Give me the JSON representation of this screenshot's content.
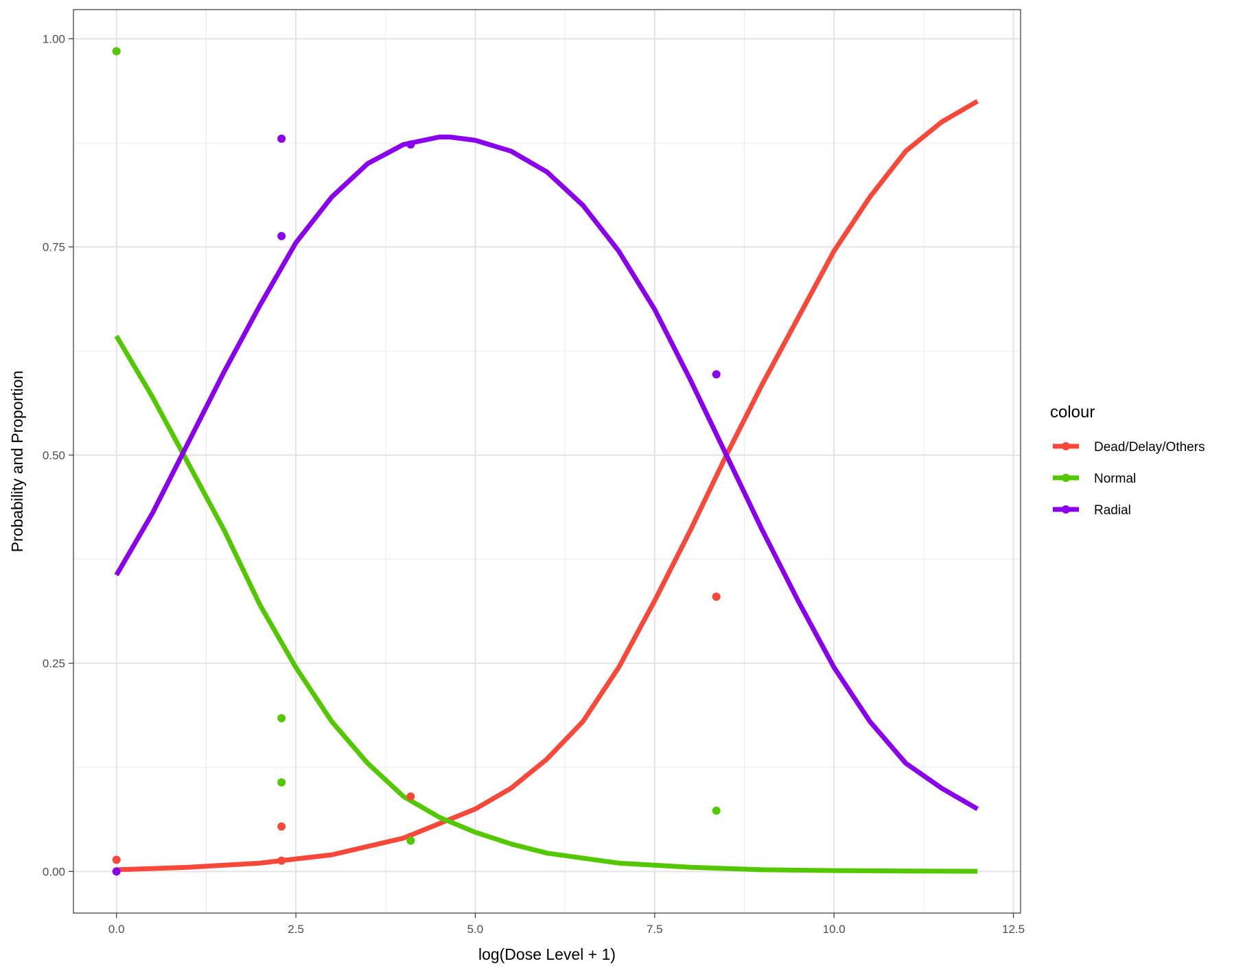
{
  "chart_data": {
    "type": "line",
    "title": "",
    "xlabel": "log(Dose Level + 1)",
    "ylabel": "Probability and Proportion",
    "xlim": [
      -0.6,
      12.6
    ],
    "ylim": [
      -0.05,
      1.035
    ],
    "x_ticks": [
      0.0,
      2.5,
      5.0,
      7.5,
      10.0,
      12.5
    ],
    "x_tick_labels": [
      "0.0",
      "2.5",
      "5.0",
      "7.5",
      "10.0",
      "12.5"
    ],
    "y_ticks": [
      0.0,
      0.25,
      0.5,
      0.75,
      1.0
    ],
    "y_tick_labels": [
      "0.00",
      "0.25",
      "0.50",
      "0.75",
      "1.00"
    ],
    "grid": true,
    "legend": {
      "title": "colour",
      "position": "right"
    },
    "series": [
      {
        "name": "Dead/Delay/Others",
        "color": "#F8483A",
        "curve_x": [
          0,
          1,
          2,
          3,
          4,
          5,
          5.5,
          6,
          6.5,
          7,
          7.5,
          8,
          8.5,
          9,
          9.5,
          10,
          10.5,
          11,
          11.5,
          12
        ],
        "curve_y": [
          0.002,
          0.005,
          0.01,
          0.02,
          0.04,
          0.075,
          0.1,
          0.135,
          0.18,
          0.245,
          0.325,
          0.41,
          0.5,
          0.585,
          0.665,
          0.745,
          0.81,
          0.865,
          0.9,
          0.925
        ],
        "points_x": [
          0.0,
          2.3,
          2.3,
          4.1,
          8.36
        ],
        "points_y": [
          0.014,
          0.054,
          0.013,
          0.09,
          0.33
        ]
      },
      {
        "name": "Normal",
        "color": "#53C800",
        "curve_x": [
          0,
          0.5,
          1,
          1.5,
          2,
          2.5,
          3,
          3.5,
          4,
          4.5,
          5,
          5.5,
          6,
          7,
          8,
          9,
          10,
          11,
          12
        ],
        "curve_y": [
          0.643,
          0.57,
          0.49,
          0.41,
          0.32,
          0.245,
          0.18,
          0.13,
          0.09,
          0.065,
          0.047,
          0.033,
          0.022,
          0.01,
          0.005,
          0.002,
          0.001,
          0.0005,
          0.0002
        ],
        "points_x": [
          0.0,
          2.3,
          2.3,
          4.1,
          8.36
        ],
        "points_y": [
          0.985,
          0.184,
          0.107,
          0.037,
          0.073
        ]
      },
      {
        "name": "Radial",
        "color": "#8B00EC",
        "curve_x": [
          0,
          0.5,
          1,
          1.5,
          2,
          2.5,
          3,
          3.5,
          4,
          4.5,
          4.65,
          5,
          5.5,
          6,
          6.5,
          7,
          7.5,
          8,
          8.5,
          9,
          9.5,
          10,
          10.5,
          11,
          11.5,
          12
        ],
        "curve_y": [
          0.356,
          0.43,
          0.515,
          0.6,
          0.68,
          0.755,
          0.81,
          0.85,
          0.873,
          0.882,
          0.882,
          0.878,
          0.865,
          0.84,
          0.8,
          0.745,
          0.675,
          0.59,
          0.5,
          0.41,
          0.325,
          0.245,
          0.18,
          0.13,
          0.1,
          0.075
        ],
        "points_x": [
          0.0,
          2.3,
          2.3,
          4.1,
          8.36
        ],
        "points_y": [
          0.0,
          0.88,
          0.763,
          0.873,
          0.597
        ]
      }
    ]
  }
}
